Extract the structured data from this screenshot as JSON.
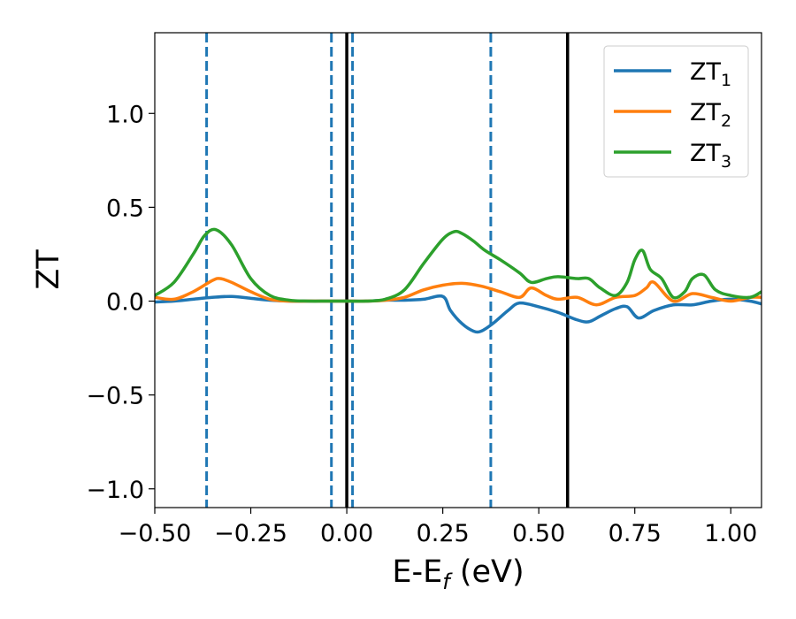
{
  "chart_data": {
    "type": "line",
    "xlabel": "E-E",
    "xlabel_sub": "f",
    "xlabel_unit": " (eV)",
    "ylabel": "ZT",
    "xlim": [
      -0.5,
      1.08
    ],
    "ylim": [
      -1.1,
      1.43
    ],
    "xticks": [
      -0.5,
      -0.25,
      0.0,
      0.25,
      0.5,
      0.75,
      1.0
    ],
    "xtick_labels": [
      "−0.50",
      "−0.25",
      "0.00",
      "0.25",
      "0.50",
      "0.75",
      "1.00"
    ],
    "yticks": [
      -1.0,
      -0.5,
      0.0,
      0.5,
      1.0
    ],
    "ytick_labels": [
      "−1.0",
      "−0.5",
      "0.0",
      "0.5",
      "1.0"
    ],
    "grid": false,
    "legend_position": "top-right",
    "vertical_lines": [
      {
        "x": -0.365,
        "style": "dashed",
        "color": "#1f77b4"
      },
      {
        "x": -0.04,
        "style": "dashed",
        "color": "#1f77b4"
      },
      {
        "x": 0.015,
        "style": "dashed",
        "color": "#1f77b4"
      },
      {
        "x": 0.375,
        "style": "dashed",
        "color": "#1f77b4"
      },
      {
        "x": 0.0,
        "style": "solid",
        "color": "#000000"
      },
      {
        "x": 0.575,
        "style": "solid",
        "color": "#000000"
      }
    ],
    "series": [
      {
        "name": "ZT",
        "name_sub": "1",
        "color": "#1f77b4",
        "x": [
          -0.5,
          -0.45,
          -0.4,
          -0.35,
          -0.3,
          -0.25,
          -0.2,
          -0.15,
          -0.1,
          -0.05,
          0.0,
          0.05,
          0.1,
          0.15,
          0.2,
          0.25,
          0.27,
          0.3,
          0.33,
          0.35,
          0.38,
          0.42,
          0.45,
          0.5,
          0.55,
          0.6,
          0.63,
          0.66,
          0.7,
          0.73,
          0.76,
          0.8,
          0.85,
          0.9,
          0.95,
          1.0,
          1.05,
          1.08
        ],
        "y": [
          -0.005,
          0.0,
          0.01,
          0.02,
          0.025,
          0.015,
          0.005,
          0.0,
          0.0,
          0.0,
          0.0,
          0.0,
          0.005,
          0.005,
          0.01,
          0.025,
          -0.05,
          -0.12,
          -0.16,
          -0.16,
          -0.12,
          -0.05,
          -0.01,
          -0.03,
          -0.06,
          -0.1,
          -0.11,
          -0.08,
          -0.04,
          -0.03,
          -0.09,
          -0.05,
          -0.02,
          -0.02,
          0.0,
          0.01,
          0.0,
          -0.015
        ]
      },
      {
        "name": "ZT",
        "name_sub": "2",
        "color": "#ff7f0e",
        "x": [
          -0.5,
          -0.45,
          -0.4,
          -0.35,
          -0.33,
          -0.3,
          -0.25,
          -0.2,
          -0.15,
          -0.1,
          -0.05,
          0.0,
          0.05,
          0.1,
          0.15,
          0.2,
          0.25,
          0.3,
          0.35,
          0.4,
          0.45,
          0.48,
          0.52,
          0.55,
          0.6,
          0.65,
          0.7,
          0.75,
          0.78,
          0.8,
          0.85,
          0.9,
          0.95,
          1.0,
          1.05,
          1.08
        ],
        "y": [
          0.02,
          0.01,
          0.05,
          0.11,
          0.12,
          0.1,
          0.05,
          0.01,
          0.0,
          0.0,
          0.0,
          0.0,
          0.0,
          0.005,
          0.02,
          0.06,
          0.085,
          0.095,
          0.08,
          0.05,
          0.02,
          0.07,
          0.03,
          0.01,
          0.02,
          -0.02,
          0.02,
          0.03,
          0.07,
          0.1,
          0.0,
          0.04,
          0.02,
          0.0,
          0.02,
          0.02
        ]
      },
      {
        "name": "ZT",
        "name_sub": "3",
        "color": "#2ca02c",
        "x": [
          -0.5,
          -0.45,
          -0.4,
          -0.37,
          -0.34,
          -0.3,
          -0.25,
          -0.2,
          -0.15,
          -0.1,
          -0.05,
          0.0,
          0.05,
          0.1,
          0.15,
          0.2,
          0.25,
          0.28,
          0.3,
          0.33,
          0.36,
          0.4,
          0.45,
          0.48,
          0.52,
          0.55,
          0.6,
          0.63,
          0.66,
          0.7,
          0.73,
          0.75,
          0.77,
          0.79,
          0.82,
          0.85,
          0.88,
          0.9,
          0.93,
          0.96,
          1.0,
          1.05,
          1.08
        ],
        "y": [
          0.03,
          0.1,
          0.25,
          0.35,
          0.38,
          0.3,
          0.12,
          0.03,
          0.005,
          0.0,
          0.0,
          0.0,
          0.0,
          0.01,
          0.06,
          0.2,
          0.33,
          0.37,
          0.36,
          0.32,
          0.27,
          0.22,
          0.15,
          0.1,
          0.12,
          0.13,
          0.12,
          0.12,
          0.07,
          0.03,
          0.1,
          0.22,
          0.27,
          0.17,
          0.12,
          0.02,
          0.05,
          0.12,
          0.14,
          0.06,
          0.03,
          0.02,
          0.05
        ]
      }
    ]
  }
}
